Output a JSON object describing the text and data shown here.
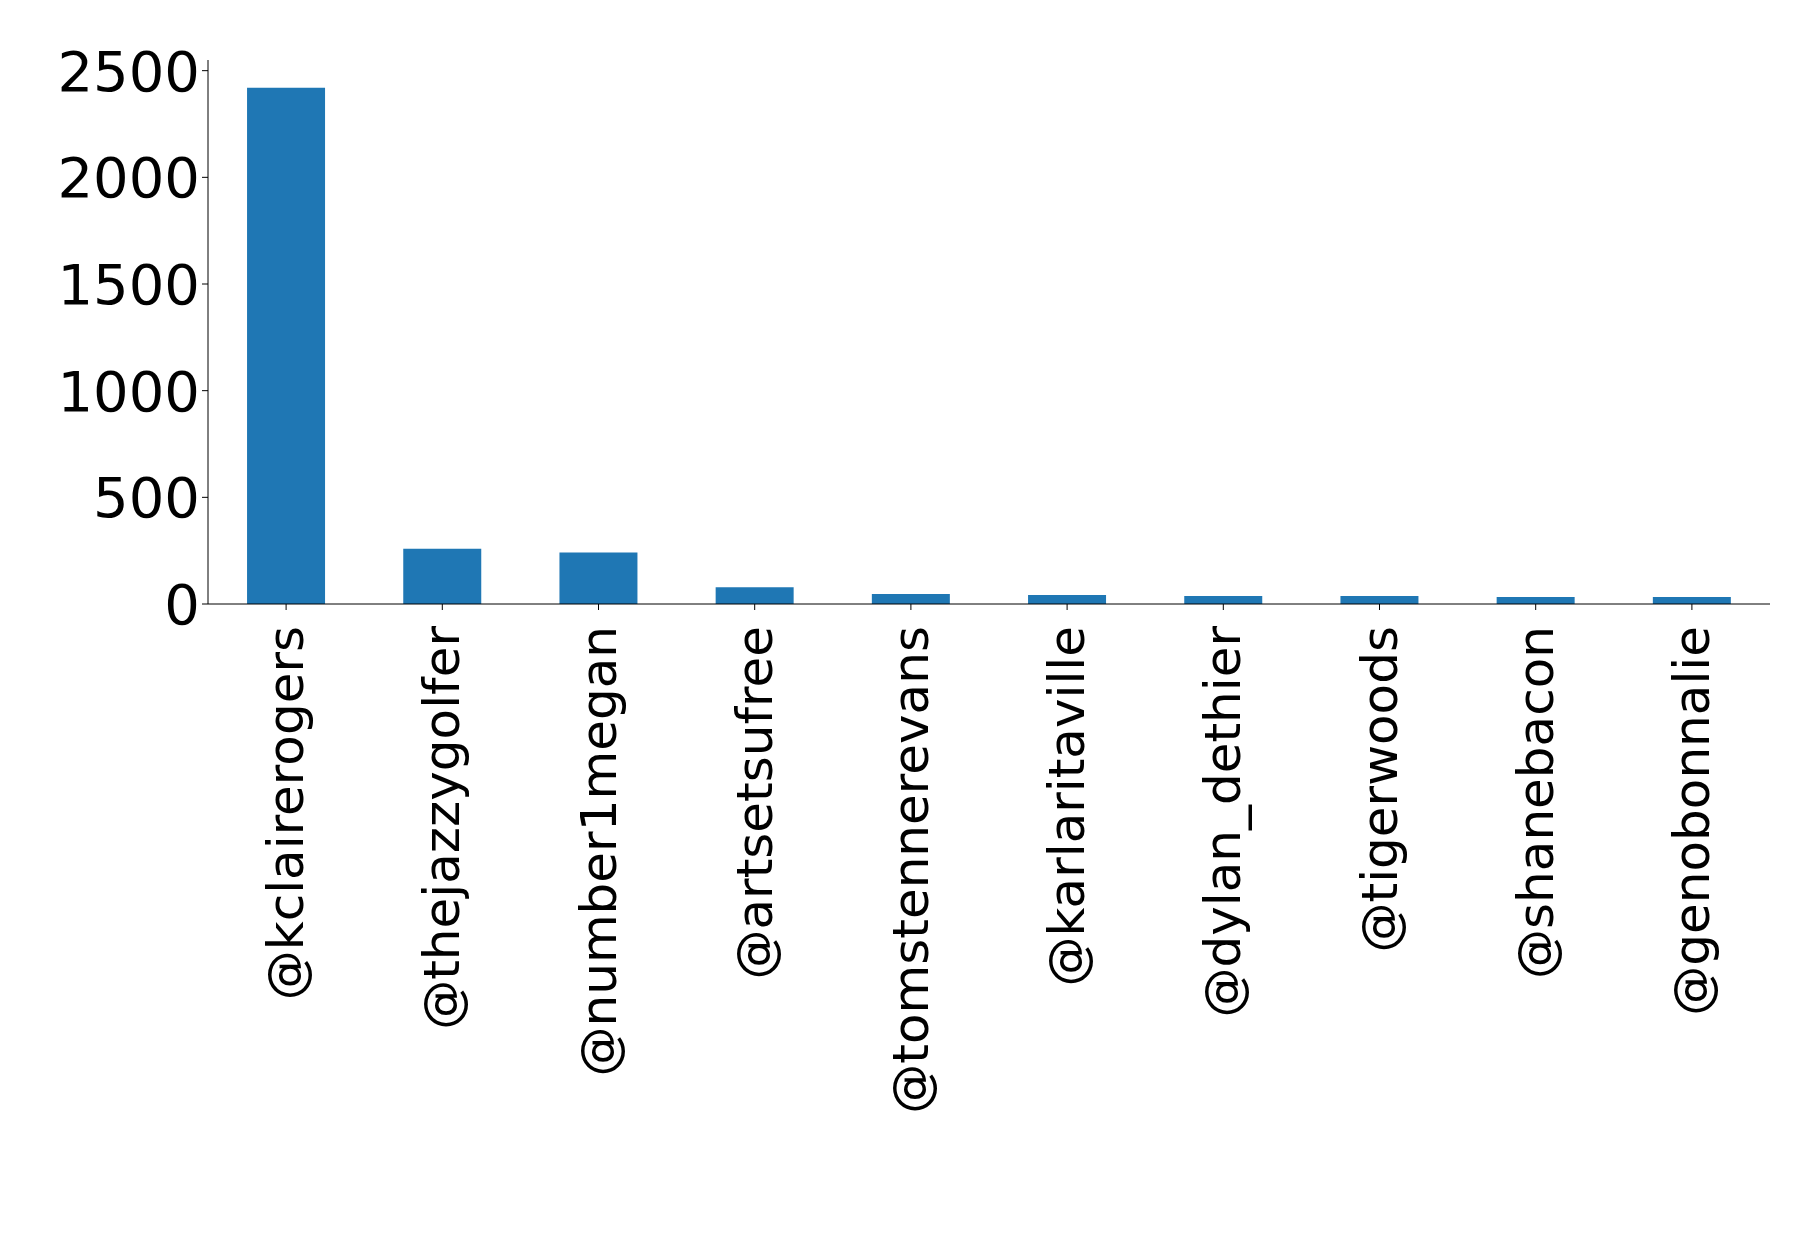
{
  "chart_data": {
    "type": "bar",
    "categories": [
      "@kclairerogers",
      "@thejazzygolfer",
      "@number1megan",
      "@artsetsufree",
      "@tomstennerevans",
      "@karlaritaville",
      "@dylan_dethier",
      "@tigerwoods",
      "@shanebacon",
      "@genobonnalie"
    ],
    "values": [
      2420,
      259,
      241,
      78,
      47,
      42,
      38,
      38,
      33,
      33
    ],
    "color": "#1f77b4",
    "ylim": [
      0,
      2550
    ],
    "yticks": [
      0,
      500,
      1000,
      1500,
      2000,
      2500
    ],
    "grid": false
  }
}
